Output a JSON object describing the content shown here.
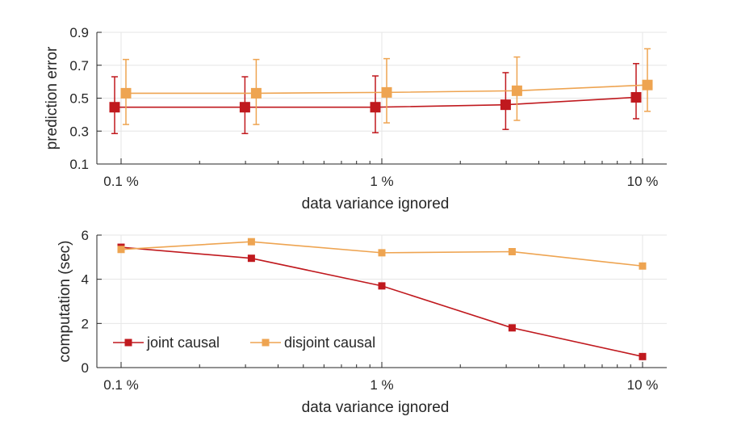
{
  "chart_data": [
    {
      "type": "line",
      "xscale": "log",
      "x": [
        0.1,
        0.316,
        1,
        3.16,
        10
      ],
      "x_tick_values": [
        0.1,
        1,
        10
      ],
      "x_tick_labels": [
        "0.1 %",
        "1 %",
        "10 %"
      ],
      "xlabel": "data variance ignored",
      "ylabel": "prediction error",
      "ylim": [
        0.1,
        0.9
      ],
      "y_ticks": [
        0.1,
        0.3,
        0.5,
        0.7,
        0.9
      ],
      "y_tick_labels": [
        "0.1",
        "0.3",
        "0.5",
        "0.7",
        "0.9"
      ],
      "grid": true,
      "series": [
        {
          "name": "joint causal",
          "color": "#c0191e",
          "values": [
            0.445,
            0.445,
            0.445,
            0.46,
            0.505
          ],
          "err_low": [
            0.285,
            0.285,
            0.29,
            0.31,
            0.375
          ],
          "err_high": [
            0.63,
            0.63,
            0.635,
            0.655,
            0.71
          ]
        },
        {
          "name": "disjoint causal",
          "color": "#eea451",
          "values": [
            0.53,
            0.53,
            0.535,
            0.545,
            0.58
          ],
          "err_low": [
            0.34,
            0.34,
            0.35,
            0.365,
            0.42
          ],
          "err_high": [
            0.735,
            0.735,
            0.74,
            0.75,
            0.8
          ]
        }
      ]
    },
    {
      "type": "line",
      "xscale": "log",
      "x": [
        0.1,
        0.316,
        1,
        3.16,
        10
      ],
      "x_tick_values": [
        0.1,
        1,
        10
      ],
      "x_tick_labels": [
        "0.1 %",
        "1 %",
        "10 %"
      ],
      "xlabel": "data variance ignored",
      "ylabel": "computation (sec)",
      "ylim": [
        0,
        6
      ],
      "y_ticks": [
        0,
        2,
        4,
        6
      ],
      "y_tick_labels": [
        "0",
        "2",
        "4",
        "6"
      ],
      "grid": true,
      "legend": "bottom-left",
      "series": [
        {
          "name": "joint causal",
          "color": "#c0191e",
          "values": [
            5.45,
            4.95,
            3.7,
            1.8,
            0.5
          ]
        },
        {
          "name": "disjoint causal",
          "color": "#eea451",
          "values": [
            5.35,
            5.7,
            5.2,
            5.25,
            4.6
          ]
        }
      ]
    }
  ]
}
